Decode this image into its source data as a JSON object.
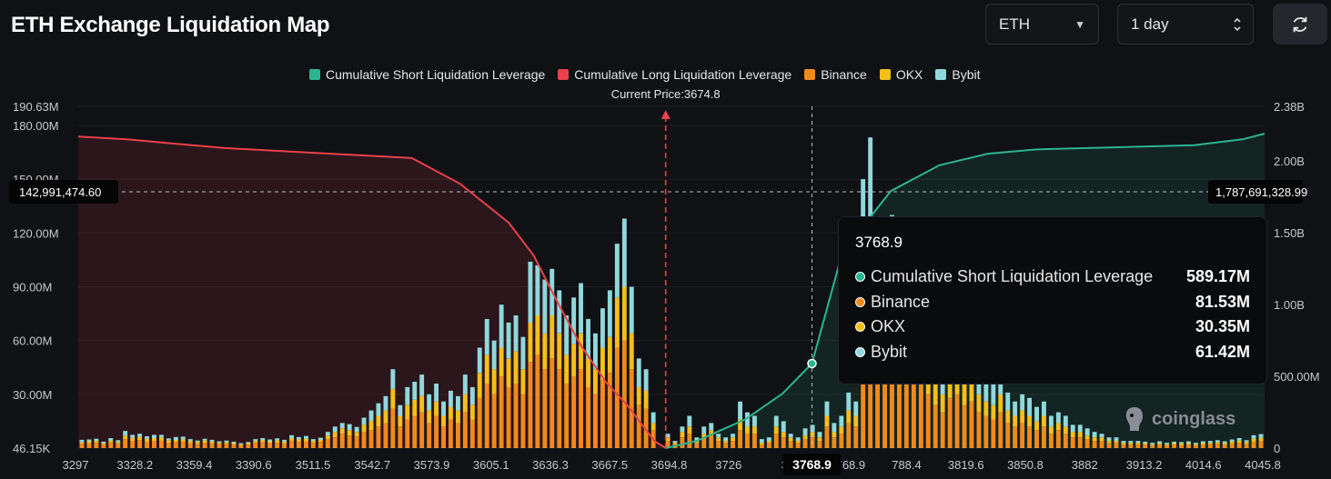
{
  "page": {
    "title": "ETH Exchange Liquidation Map",
    "coin_select": "ETH",
    "period_select": "1 day",
    "refresh_icon": "refresh-icon"
  },
  "colors": {
    "short_line": "#2bb58f",
    "long_line": "#e8414b",
    "binance": "#f08a1c",
    "okx": "#f5bf1a",
    "bybit": "#8fd8dc",
    "background": "#101114"
  },
  "chart_data": {
    "type": "bar",
    "current_price_label": "Current Price:3674.8",
    "current_price": 3674.8,
    "legend": [
      {
        "name": "Cumulative Short Liquidation Leverage",
        "color": "#2bb58f"
      },
      {
        "name": "Cumulative Long Liquidation Leverage",
        "color": "#e8414b"
      },
      {
        "name": "Binance",
        "color": "#f08a1c"
      },
      {
        "name": "OKX",
        "color": "#f5bf1a"
      },
      {
        "name": "Bybit",
        "color": "#8fd8dc"
      }
    ],
    "left_axis": {
      "ticks": [
        "190.63M",
        "180.00M",
        "150.00M",
        "120.00M",
        "90.00M",
        "60.00M",
        "30.00M",
        "46.15K"
      ],
      "tick_values": [
        190.63,
        180,
        150,
        120,
        90,
        60,
        30,
        0.046
      ],
      "range": [
        0,
        190.63
      ]
    },
    "right_axis": {
      "ticks": [
        "2.38B",
        "2.00B",
        "1.50B",
        "1.00B",
        "500.00M",
        "0"
      ],
      "tick_values": [
        2.38,
        2.0,
        1.5,
        1.0,
        0.5,
        0
      ],
      "range": [
        0,
        2.38
      ]
    },
    "x_ticks": [
      "3297",
      "3328.2",
      "3359.4",
      "3390.6",
      "3511.5",
      "3542.7",
      "3573.9",
      "3605.1",
      "3636.3",
      "3667.5",
      "3694.8",
      "3726",
      "37",
      "3768.9",
      "788.4",
      "3819.6",
      "3850.8",
      "3882",
      "3913.2",
      "4014.6",
      "4045.8"
    ],
    "crosshair": {
      "left_value_label": "142,991,474.60",
      "right_value_label": "1,787,691,328.99",
      "x_label": "3768.9",
      "left_value": 142.99,
      "right_value": 1.7877
    },
    "bar_values_M": [
      [
        2.4,
        0.8,
        1.4
      ],
      [
        2.8,
        1.0,
        1.0
      ],
      [
        3.0,
        1.0,
        1.2
      ],
      [
        2.2,
        0.6,
        0.8
      ],
      [
        3.2,
        1.0,
        1.4
      ],
      [
        2.6,
        0.8,
        1.0
      ],
      [
        5.0,
        2.0,
        2.6
      ],
      [
        4.0,
        1.8,
        1.6
      ],
      [
        4.4,
        2.0,
        1.6
      ],
      [
        3.6,
        1.6,
        1.4
      ],
      [
        4.0,
        1.6,
        1.8
      ],
      [
        4.2,
        1.8,
        1.4
      ],
      [
        3.0,
        1.2,
        1.2
      ],
      [
        3.4,
        1.2,
        1.6
      ],
      [
        3.6,
        1.4,
        1.4
      ],
      [
        2.8,
        1.2,
        1.0
      ],
      [
        2.4,
        1.0,
        0.8
      ],
      [
        3.0,
        1.2,
        1.0
      ],
      [
        2.6,
        1.0,
        1.0
      ],
      [
        2.2,
        0.8,
        0.8
      ],
      [
        2.4,
        1.0,
        0.8
      ],
      [
        2.0,
        0.8,
        0.8
      ],
      [
        1.6,
        0.6,
        0.6
      ],
      [
        2.0,
        0.8,
        0.6
      ],
      [
        3.0,
        1.0,
        1.0
      ],
      [
        3.2,
        1.2,
        1.2
      ],
      [
        2.8,
        1.0,
        1.0
      ],
      [
        3.0,
        1.2,
        1.2
      ],
      [
        2.6,
        1.0,
        1.0
      ],
      [
        4.2,
        1.4,
        1.6
      ],
      [
        3.6,
        1.4,
        1.2
      ],
      [
        3.8,
        1.4,
        1.6
      ],
      [
        3.0,
        1.0,
        1.0
      ],
      [
        3.4,
        1.2,
        1.2
      ],
      [
        5.0,
        2.0,
        2.0
      ],
      [
        6.0,
        3.0,
        3.0
      ],
      [
        8.0,
        3.0,
        3.0
      ],
      [
        7.0,
        3.0,
        3.4
      ],
      [
        6.4,
        2.6,
        2.8
      ],
      [
        9.0,
        4.0,
        4.0
      ],
      [
        10.0,
        5.0,
        6.0
      ],
      [
        12.0,
        6.0,
        7.0
      ],
      [
        14.0,
        7.0,
        8.0
      ],
      [
        22.0,
        11.0,
        11.0
      ],
      [
        12.0,
        6.0,
        6.0
      ],
      [
        16.0,
        8.0,
        10.0
      ],
      [
        18.0,
        9.0,
        10.0
      ],
      [
        20.0,
        9.0,
        12.0
      ],
      [
        14.0,
        7.0,
        9.0
      ],
      [
        18.0,
        8.0,
        10.0
      ],
      [
        12.0,
        6.0,
        8.0
      ],
      [
        16.0,
        7.0,
        9.0
      ],
      [
        14.0,
        7.0,
        8.0
      ],
      [
        20.0,
        10.0,
        11.0
      ],
      [
        16.0,
        8.0,
        10.0
      ],
      [
        28.0,
        14.0,
        14.0
      ],
      [
        36.0,
        16.0,
        20.0
      ],
      [
        30.0,
        14.0,
        16.0
      ],
      [
        40.0,
        16.0,
        24.0
      ],
      [
        34.0,
        16.0,
        20.0
      ],
      [
        36.0,
        18.0,
        20.0
      ],
      [
        30.0,
        14.0,
        18.0
      ],
      [
        48.0,
        22.0,
        34.0
      ],
      [
        52.0,
        22.0,
        28.0
      ],
      [
        44.0,
        20.0,
        30.0
      ],
      [
        50.0,
        24.0,
        26.0
      ],
      [
        44.0,
        20.0,
        24.0
      ],
      [
        36.0,
        16.0,
        22.0
      ],
      [
        40.0,
        18.0,
        26.0
      ],
      [
        44.0,
        20.0,
        28.0
      ],
      [
        34.0,
        16.0,
        22.0
      ],
      [
        30.0,
        14.0,
        20.0
      ],
      [
        38.0,
        18.0,
        22.0
      ],
      [
        42.0,
        20.0,
        26.0
      ],
      [
        56.0,
        28.0,
        30.0
      ],
      [
        60.0,
        30.0,
        38.0
      ],
      [
        44.0,
        20.0,
        26.0
      ],
      [
        24.0,
        10.0,
        16.0
      ],
      [
        22.0,
        10.0,
        12.0
      ],
      [
        10.0,
        4.0,
        6.0
      ],
      [
        0.0,
        0.0,
        0.0
      ],
      [
        4.0,
        2.0,
        2.0
      ],
      [
        2.0,
        1.0,
        1.0
      ],
      [
        6.0,
        3.0,
        3.0
      ],
      [
        8.0,
        4.0,
        6.0
      ],
      [
        3.0,
        1.0,
        2.0
      ],
      [
        6.0,
        2.0,
        4.0
      ],
      [
        7.0,
        3.0,
        4.0
      ],
      [
        4.0,
        2.0,
        2.0
      ],
      [
        3.0,
        1.0,
        2.0
      ],
      [
        4.0,
        2.0,
        2.0
      ],
      [
        10.0,
        6.0,
        10.0
      ],
      [
        8.0,
        4.0,
        8.0
      ],
      [
        8.0,
        4.0,
        6.0
      ],
      [
        2.0,
        1.0,
        2.0
      ],
      [
        3.0,
        1.0,
        2.0
      ],
      [
        8.0,
        4.0,
        6.0
      ],
      [
        6.0,
        3.0,
        6.0
      ],
      [
        4.0,
        2.0,
        2.0
      ],
      [
        3.0,
        1.0,
        2.0
      ],
      [
        5.0,
        2.0,
        4.0
      ],
      [
        6.0,
        3.0,
        4.0
      ],
      [
        4.0,
        2.0,
        3.0
      ],
      [
        12.0,
        6.0,
        8.0
      ],
      [
        6.0,
        3.0,
        5.0
      ],
      [
        8.0,
        4.0,
        6.0
      ],
      [
        14.0,
        7.0,
        10.0
      ],
      [
        12.0,
        6.0,
        8.0
      ],
      [
        60.0,
        40.0,
        50.0
      ],
      [
        81.53,
        30.35,
        61.42
      ],
      [
        50.0,
        26.0,
        36.0
      ],
      [
        40.0,
        22.0,
        32.0
      ],
      [
        60.0,
        40.0,
        30.0
      ],
      [
        44.0,
        26.0,
        30.0
      ],
      [
        50.0,
        30.0,
        30.0
      ],
      [
        44.0,
        24.0,
        28.0
      ],
      [
        36.0,
        18.0,
        24.0
      ],
      [
        30.0,
        14.0,
        20.0
      ],
      [
        24.0,
        12.0,
        16.0
      ],
      [
        20.0,
        10.0,
        14.0
      ],
      [
        28.0,
        14.0,
        18.0
      ],
      [
        30.0,
        14.0,
        22.0
      ],
      [
        24.0,
        12.0,
        16.0
      ],
      [
        26.0,
        12.0,
        16.0
      ],
      [
        20.0,
        10.0,
        14.0
      ],
      [
        18.0,
        8.0,
        12.0
      ],
      [
        16.0,
        8.0,
        12.0
      ],
      [
        20.0,
        10.0,
        14.0
      ],
      [
        14.0,
        7.0,
        10.0
      ],
      [
        12.0,
        6.0,
        8.0
      ],
      [
        14.0,
        7.0,
        9.0
      ],
      [
        12.0,
        6.0,
        10.0
      ],
      [
        10.0,
        5.0,
        8.0
      ],
      [
        12.0,
        6.0,
        8.0
      ],
      [
        8.0,
        4.0,
        6.0
      ],
      [
        10.0,
        4.0,
        6.0
      ],
      [
        8.0,
        4.0,
        6.0
      ],
      [
        6.0,
        3.0,
        4.0
      ],
      [
        6.0,
        3.0,
        4.0
      ],
      [
        5.0,
        2.0,
        4.0
      ],
      [
        4.0,
        2.0,
        3.0
      ],
      [
        4.0,
        2.0,
        2.0
      ],
      [
        3.0,
        1.0,
        2.0
      ],
      [
        3.0,
        1.0,
        2.0
      ],
      [
        2.0,
        1.0,
        1.0
      ],
      [
        2.0,
        1.0,
        1.0
      ],
      [
        2.0,
        1.0,
        1.0
      ],
      [
        2.0,
        0.8,
        0.8
      ],
      [
        1.6,
        0.6,
        0.8
      ],
      [
        2.0,
        0.8,
        1.0
      ],
      [
        1.6,
        0.6,
        0.8
      ],
      [
        2.0,
        0.8,
        0.8
      ],
      [
        1.8,
        0.8,
        0.8
      ],
      [
        2.0,
        0.8,
        1.0
      ],
      [
        1.6,
        0.6,
        0.8
      ],
      [
        2.0,
        0.8,
        1.0
      ],
      [
        2.2,
        0.8,
        1.0
      ],
      [
        2.4,
        1.0,
        1.0
      ],
      [
        2.0,
        0.8,
        1.0
      ],
      [
        2.6,
        1.0,
        1.2
      ],
      [
        3.0,
        1.2,
        1.4
      ],
      [
        2.4,
        1.0,
        1.0
      ],
      [
        3.6,
        1.6,
        2.0
      ],
      [
        4.0,
        1.8,
        2.0
      ]
    ],
    "long_cumulative_B": [
      [
        3297,
        2.17
      ],
      [
        3328.2,
        2.15
      ],
      [
        3359.4,
        2.12
      ],
      [
        3390.6,
        2.09
      ],
      [
        3511.5,
        2.02
      ],
      [
        3542.7,
        1.84
      ],
      [
        3573.9,
        1.57
      ],
      [
        3590,
        1.34
      ],
      [
        3605.1,
        1.02
      ],
      [
        3620,
        0.72
      ],
      [
        3636.3,
        0.46
      ],
      [
        3650,
        0.3
      ],
      [
        3667.5,
        0.05
      ],
      [
        3674.8,
        0.0
      ]
    ],
    "short_cumulative_B": [
      [
        3674.8,
        0.0
      ],
      [
        3694.8,
        0.05
      ],
      [
        3726,
        0.2
      ],
      [
        3750,
        0.38
      ],
      [
        3768.9,
        0.589
      ],
      [
        3788.4,
        1.36
      ],
      [
        3819.6,
        1.79
      ],
      [
        3850.8,
        1.97
      ],
      [
        3882,
        2.05
      ],
      [
        3913.2,
        2.08
      ],
      [
        4014.6,
        2.11
      ],
      [
        4045.8,
        2.15
      ],
      [
        4060,
        2.19
      ]
    ],
    "short_line_marker": {
      "x": 3768.9,
      "y_B": 0.589
    }
  },
  "tooltip": {
    "title": "3768.9",
    "rows": [
      {
        "label": "Cumulative Short Liquidation Leverage",
        "value": "589.17M",
        "color": "#2bb58f"
      },
      {
        "label": "Binance",
        "value": "81.53M",
        "color": "#f08a1c"
      },
      {
        "label": "OKX",
        "value": "30.35M",
        "color": "#f5bf1a"
      },
      {
        "label": "Bybit",
        "value": "61.42M",
        "color": "#8fd8dc"
      }
    ]
  },
  "watermark": "coinglass"
}
